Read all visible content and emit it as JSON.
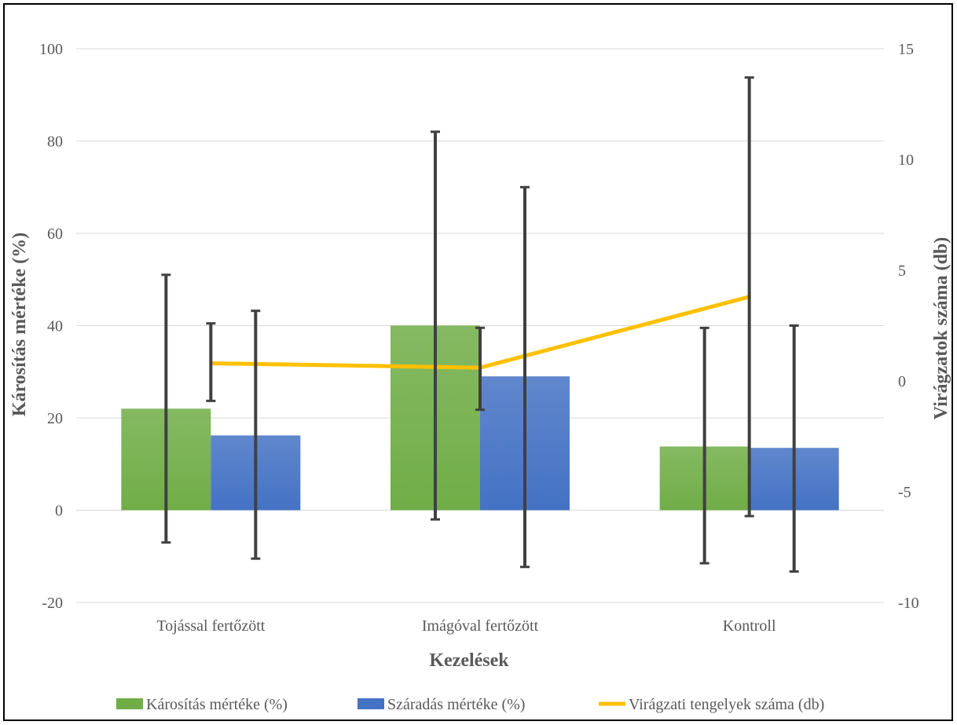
{
  "chart_data": {
    "type": "bar",
    "title": "",
    "xlabel": "Kezelések",
    "ylabel": "Károsítás mértéke (%)",
    "y2label": "Virágzatok száma (db)",
    "ylim": [
      -20,
      100
    ],
    "y2lim": [
      -10,
      15
    ],
    "yticks": [
      -20,
      0,
      20,
      40,
      60,
      80,
      100
    ],
    "y2ticks": [
      -10,
      -5,
      0,
      5,
      10,
      15
    ],
    "grid": true,
    "legend": "bottom",
    "categories": [
      "Tojással fertőzött",
      "Imágóval fertőzött",
      "Kontroll"
    ],
    "series": [
      {
        "name": "Károsítás mértéke (%)",
        "type": "bar",
        "axis": "left",
        "color": "#70ad47",
        "values": [
          22,
          40,
          13.8
        ],
        "error_low": [
          -7,
          -2,
          -11.5
        ],
        "error_high": [
          51,
          82,
          39.5
        ]
      },
      {
        "name": "Száradás mértéke (%)",
        "type": "bar",
        "axis": "left",
        "color": "#4472c4",
        "values": [
          16.2,
          29,
          13.5
        ],
        "error_low": [
          -10.5,
          -12.3,
          -13.3
        ],
        "error_high": [
          43.2,
          70,
          40
        ]
      },
      {
        "name": "Virágzati tengelyek száma (db)",
        "type": "line",
        "axis": "right",
        "color": "#ffc000",
        "values": [
          0.8,
          0.6,
          3.8
        ],
        "error_low": [
          -0.9,
          -1.3,
          -6.1
        ],
        "error_high": [
          2.6,
          2.4,
          13.7
        ]
      }
    ]
  }
}
